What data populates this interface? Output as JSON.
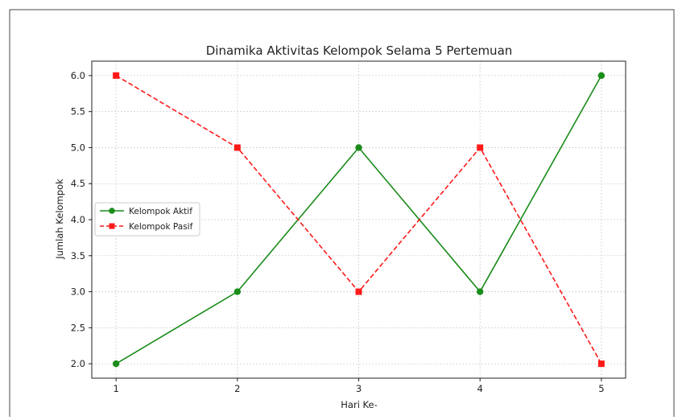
{
  "chart_data": {
    "type": "line",
    "title": "Dinamika Aktivitas Kelompok Selama 5 Pertemuan",
    "xlabel": "Hari Ke-",
    "ylabel": "Jumlah Kelompok",
    "x": [
      1,
      2,
      3,
      4,
      5
    ],
    "xticks": [
      "1",
      "2",
      "3",
      "4",
      "5"
    ],
    "yticks": [
      "2.0",
      "2.5",
      "3.0",
      "3.5",
      "4.0",
      "4.5",
      "5.0",
      "5.5",
      "6.0"
    ],
    "xlim": [
      0.8,
      5.2
    ],
    "ylim": [
      1.8,
      6.2
    ],
    "grid": true,
    "legend_position": "center-left",
    "series": [
      {
        "name": "Kelompok Aktif",
        "values": [
          2,
          3,
          5,
          3,
          6
        ],
        "color": "#1a8c1a",
        "marker": "circle",
        "linestyle": "solid"
      },
      {
        "name": "Kelompok Pasif",
        "values": [
          6,
          5,
          3,
          5,
          2
        ],
        "color": "#ff1a1a",
        "marker": "square",
        "linestyle": "dashed"
      }
    ]
  }
}
